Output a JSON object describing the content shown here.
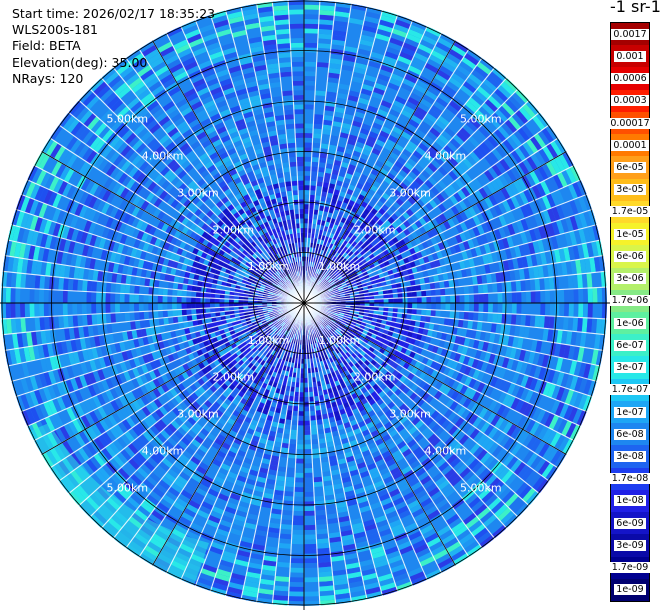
{
  "info": {
    "start_time": "Start time: 2026/02/17 18:35:23",
    "instrument": "WLS200s-181",
    "field": "Field: BETA",
    "elevation": "Elevation(deg): 35.00",
    "nrays": "NRays: 120"
  },
  "colorbar": {
    "title": "-1 sr-1",
    "labels": [
      "0.0017",
      "0.001",
      "0.0006",
      "0.0003",
      "0.00017",
      "0.0001",
      "6e-05",
      "3e-05",
      "1.7e-05",
      "1e-05",
      "6e-06",
      "3e-06",
      "1.7e-06",
      "1e-06",
      "6e-07",
      "3e-07",
      "1.7e-07",
      "1e-07",
      "6e-08",
      "3e-08",
      "1.7e-08",
      "1e-08",
      "6e-09",
      "3e-09",
      "1.7e-09",
      "1e-09"
    ],
    "colors": [
      "#a40000",
      "#c80000",
      "#e60000",
      "#ff1e00",
      "#ff5000",
      "#ff7a00",
      "#ff9f1a",
      "#ffbd1a",
      "#ffd92a",
      "#f6f22a",
      "#d9f54a",
      "#b4f06a",
      "#86ea86",
      "#5ef0a0",
      "#3cf0c8",
      "#28e8e8",
      "#1ec8f5",
      "#1ea6f5",
      "#1e87f0",
      "#1e64f0",
      "#1e3ef0",
      "#2020e6",
      "#1414c8",
      "#0a0aa8",
      "#000090",
      "#000070"
    ]
  },
  "range_labels": {
    "r1": "1.00km",
    "r2": "2.00km",
    "r3": "3.00km",
    "r4": "4.00km",
    "r5": "5.00km"
  }
}
